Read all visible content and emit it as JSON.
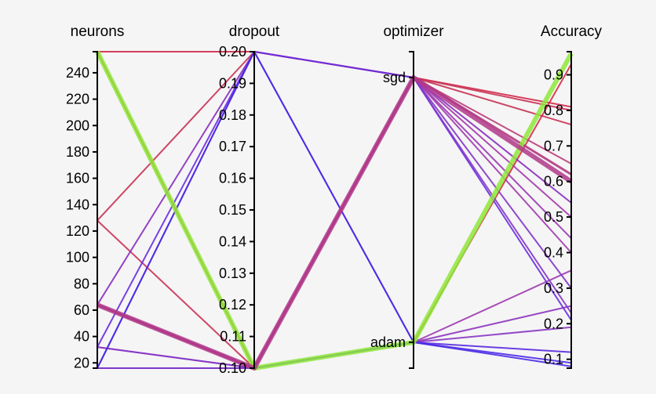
{
  "chart_data": {
    "type": "parallel-coordinates",
    "axes": [
      {
        "key": "neurons",
        "label": "neurons",
        "kind": "numeric",
        "range": [
          16,
          256
        ],
        "ticks": [
          "20",
          "40",
          "60",
          "80",
          "100",
          "120",
          "140",
          "160",
          "180",
          "200",
          "220",
          "240"
        ],
        "tick_values": [
          20,
          40,
          60,
          80,
          100,
          120,
          140,
          160,
          180,
          200,
          220,
          240
        ]
      },
      {
        "key": "dropout",
        "label": "dropout",
        "kind": "numeric",
        "range": [
          0.1,
          0.2
        ],
        "ticks": [
          "0.10",
          "0.11",
          "0.12",
          "0.13",
          "0.14",
          "0.15",
          "0.16",
          "0.17",
          "0.18",
          "0.19",
          "0.20"
        ],
        "tick_values": [
          0.1,
          0.11,
          0.12,
          0.13,
          0.14,
          0.15,
          0.16,
          0.17,
          0.18,
          0.19,
          0.2
        ]
      },
      {
        "key": "optimizer",
        "label": "optimizer",
        "kind": "categorical",
        "categories": [
          "adam",
          "sgd"
        ],
        "ticks": [
          "adam",
          "sgd"
        ]
      },
      {
        "key": "accuracy",
        "label": "Accuracy",
        "kind": "numeric",
        "range": [
          0.075,
          0.965
        ],
        "ticks": [
          "0.1",
          "0.2",
          "0.3",
          "0.4",
          "0.5",
          "0.6",
          "0.7",
          "0.8",
          "0.9"
        ],
        "tick_values": [
          0.1,
          0.2,
          0.3,
          0.4,
          0.5,
          0.6,
          0.7,
          0.8,
          0.9
        ]
      }
    ],
    "trials": [
      {
        "neurons": 256,
        "dropout": 0.1,
        "optimizer": "adam",
        "accuracy": 0.96,
        "color": "#8ee83a",
        "width": 6
      },
      {
        "neurons": 256,
        "dropout": 0.2,
        "optimizer": "sgd",
        "accuracy": 0.81,
        "color": "#d12a4a",
        "width": 2
      },
      {
        "neurons": 256,
        "dropout": 0.1,
        "optimizer": "adam",
        "accuracy": 0.93,
        "color": "#d62e45",
        "width": 2
      },
      {
        "neurons": 128,
        "dropout": 0.2,
        "optimizer": "sgd",
        "accuracy": 0.8,
        "color": "#c93356",
        "width": 2
      },
      {
        "neurons": 128,
        "dropout": 0.1,
        "optimizer": "sgd",
        "accuracy": 0.76,
        "color": "#c93356",
        "width": 2
      },
      {
        "neurons": 64,
        "dropout": 0.1,
        "optimizer": "sgd",
        "accuracy": 0.6,
        "color": "#b0388a",
        "width": 6
      },
      {
        "neurons": 64,
        "dropout": 0.1,
        "optimizer": "sgd",
        "accuracy": 0.62,
        "color": "#b43a82",
        "width": 3
      },
      {
        "neurons": 64,
        "dropout": 0.1,
        "optimizer": "sgd",
        "accuracy": 0.65,
        "color": "#bd3c78",
        "width": 2
      },
      {
        "neurons": 64,
        "dropout": 0.2,
        "optimizer": "sgd",
        "accuracy": 0.54,
        "color": "#8a2fbf",
        "width": 2
      },
      {
        "neurons": 64,
        "dropout": 0.1,
        "optimizer": "sgd",
        "accuracy": 0.5,
        "color": "#a43aa8",
        "width": 2
      },
      {
        "neurons": 64,
        "dropout": 0.1,
        "optimizer": "sgd",
        "accuracy": 0.44,
        "color": "#9a38b4",
        "width": 2
      },
      {
        "neurons": 64,
        "dropout": 0.1,
        "optimizer": "sgd",
        "accuracy": 0.4,
        "color": "#a13aae",
        "width": 2
      },
      {
        "neurons": 64,
        "dropout": 0.1,
        "optimizer": "adam",
        "accuracy": 0.35,
        "color": "#9e3ab0",
        "width": 2
      },
      {
        "neurons": 64,
        "dropout": 0.1,
        "optimizer": "adam",
        "accuracy": 0.25,
        "color": "#8e36c0",
        "width": 2
      },
      {
        "neurons": 32,
        "dropout": 0.2,
        "optimizer": "sgd",
        "accuracy": 0.21,
        "color": "#6a2fe0",
        "width": 2
      },
      {
        "neurons": 32,
        "dropout": 0.1,
        "optimizer": "adam",
        "accuracy": 0.19,
        "color": "#8a36c4",
        "width": 2
      },
      {
        "neurons": 32,
        "dropout": 0.1,
        "optimizer": "sgd",
        "accuracy": 0.23,
        "color": "#8636c8",
        "width": 2
      },
      {
        "neurons": 16,
        "dropout": 0.2,
        "optimizer": "adam",
        "accuracy": 0.12,
        "color": "#5a2be0",
        "width": 2
      },
      {
        "neurons": 16,
        "dropout": 0.2,
        "optimizer": "adam",
        "accuracy": 0.09,
        "color": "#4e2ae6",
        "width": 2
      },
      {
        "neurons": 16,
        "dropout": 0.1,
        "optimizer": "adam",
        "accuracy": 0.08,
        "color": "#4a2ae8",
        "width": 2
      },
      {
        "neurons": 16,
        "dropout": 0.1,
        "optimizer": "sgd",
        "accuracy": 0.3,
        "color": "#8336c8",
        "width": 2
      }
    ]
  }
}
